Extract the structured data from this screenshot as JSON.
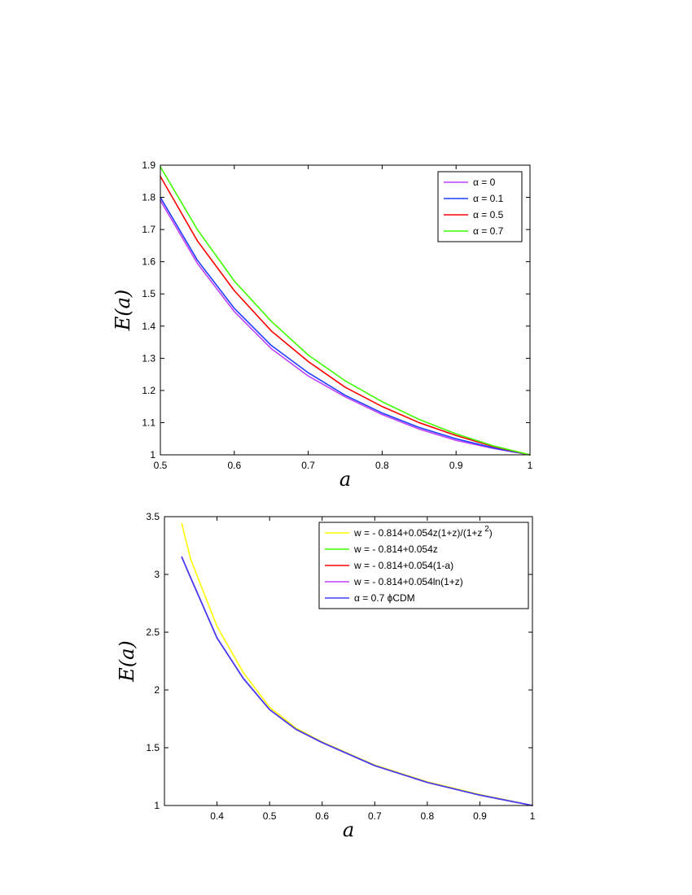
{
  "chart_data": [
    {
      "type": "line",
      "xlabel": "a",
      "ylabel": "E(a)",
      "xlim": [
        0.5,
        1
      ],
      "ylim": [
        1,
        1.9
      ],
      "xticks": [
        0.5,
        0.6,
        0.7,
        0.8,
        0.9,
        1
      ],
      "xtick_labels": [
        "0.5",
        "0.6",
        "0.7",
        "0.8",
        "0.9",
        "1"
      ],
      "yticks": [
        1,
        1.1,
        1.2,
        1.3,
        1.4,
        1.5,
        1.6,
        1.7,
        1.8,
        1.9
      ],
      "ytick_labels": [
        "1",
        "1.1",
        "1.2",
        "1.3",
        "1.4",
        "1.5",
        "1.6",
        "1.7",
        "1.8",
        "1.9"
      ],
      "grid": false,
      "legend": "top-right",
      "x": [
        0.5,
        0.55,
        0.6,
        0.65,
        0.7,
        0.75,
        0.8,
        0.85,
        0.9,
        0.95,
        1.0
      ],
      "series": [
        {
          "name": "α = 0",
          "color": "#bf3fff",
          "values": [
            1.79,
            1.595,
            1.445,
            1.33,
            1.245,
            1.18,
            1.125,
            1.08,
            1.045,
            1.02,
            1.0
          ]
        },
        {
          "name": "α = 0.1",
          "color": "#1f3fff",
          "values": [
            1.8,
            1.605,
            1.455,
            1.34,
            1.255,
            1.185,
            1.13,
            1.085,
            1.05,
            1.022,
            1.0
          ]
        },
        {
          "name": "α = 0.5",
          "color": "#ff0000",
          "values": [
            1.865,
            1.665,
            1.51,
            1.385,
            1.29,
            1.21,
            1.15,
            1.1,
            1.06,
            1.026,
            1.0
          ]
        },
        {
          "name": "α = 0.7",
          "color": "#3fff00",
          "values": [
            1.895,
            1.7,
            1.54,
            1.415,
            1.31,
            1.23,
            1.165,
            1.11,
            1.065,
            1.028,
            1.0
          ]
        }
      ]
    },
    {
      "type": "line",
      "xlabel": "a",
      "ylabel": "E(a)",
      "xlim": [
        0.3,
        1
      ],
      "ylim": [
        1,
        3.5
      ],
      "xticks": [
        0.4,
        0.5,
        0.6,
        0.7,
        0.8,
        0.9,
        1
      ],
      "xtick_labels": [
        "0.4",
        "0.5",
        "0.6",
        "0.7",
        "0.8",
        "0.9",
        "1"
      ],
      "yticks": [
        1,
        1.5,
        2,
        2.5,
        3,
        3.5
      ],
      "ytick_labels": [
        "1",
        "1.5",
        "2",
        "2.5",
        "3",
        "3.5"
      ],
      "grid": false,
      "legend": "top-right",
      "x": [
        0.333,
        0.35,
        0.4,
        0.45,
        0.5,
        0.55,
        0.6,
        0.7,
        0.8,
        0.9,
        1.0
      ],
      "series": [
        {
          "name": "w = - 0.814+0.054z(1+z)/(1+z",
          "name_sup": "2",
          "name_tail": ")",
          "color": "#ffff00",
          "values": [
            3.44,
            3.13,
            2.55,
            2.15,
            1.85,
            1.67,
            1.55,
            1.35,
            1.205,
            1.095,
            1.0
          ]
        },
        {
          "name": "w = - 0.814+0.054z",
          "color": "#3fff00",
          "values": [
            3.15,
            2.97,
            2.45,
            2.1,
            1.83,
            1.66,
            1.545,
            1.345,
            1.2,
            1.09,
            1.0
          ]
        },
        {
          "name": "w = - 0.814+0.054(1-a)",
          "color": "#ff0000",
          "values": [
            3.15,
            2.97,
            2.45,
            2.1,
            1.83,
            1.66,
            1.545,
            1.345,
            1.2,
            1.09,
            1.0
          ]
        },
        {
          "name": "w = - 0.814+0.054ln(1+z)",
          "color": "#bf3fff",
          "values": [
            3.15,
            2.97,
            2.45,
            2.1,
            1.83,
            1.66,
            1.545,
            1.345,
            1.2,
            1.09,
            1.0
          ]
        },
        {
          "name": "α = 0.7 ϕCDM",
          "color": "#3f3fff",
          "values": [
            3.15,
            2.97,
            2.45,
            2.1,
            1.83,
            1.66,
            1.545,
            1.345,
            1.2,
            1.09,
            1.0
          ]
        }
      ]
    }
  ]
}
